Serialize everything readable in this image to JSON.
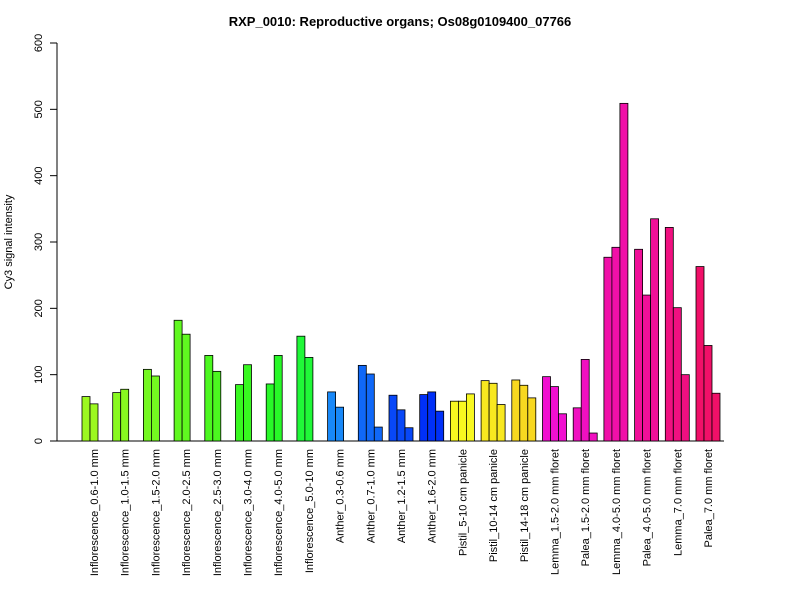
{
  "chart_data": {
    "type": "bar",
    "title": "RXP_0010: Reproductive organs; Os08g0109400_07766",
    "xlabel": "",
    "ylabel": "Cy3 signal intensity",
    "ylim": [
      0,
      600
    ],
    "yticks": [
      0,
      100,
      200,
      300,
      400,
      500,
      600
    ],
    "grid": false,
    "legend": "none",
    "groups": [
      {
        "label": "Inflorescence_0.6-1.0 mm",
        "color": "#9cf820",
        "values": [
          67,
          56
        ]
      },
      {
        "label": "Inflorescence_1.0-1.5 mm",
        "color": "#88f820",
        "values": [
          73,
          78
        ]
      },
      {
        "label": "Inflorescence_1.5-2.0 mm",
        "color": "#74f820",
        "values": [
          108,
          98
        ]
      },
      {
        "label": "Inflorescence_2.0-2.5 mm",
        "color": "#60f820",
        "values": [
          182,
          161
        ]
      },
      {
        "label": "Inflorescence_2.5-3.0 mm",
        "color": "#4cf820",
        "values": [
          129,
          105
        ]
      },
      {
        "label": "Inflorescence_3.0-4.0 mm",
        "color": "#38f820",
        "values": [
          85,
          115
        ]
      },
      {
        "label": "Inflorescence_4.0-5.0 mm",
        "color": "#28f828",
        "values": [
          86,
          129
        ]
      },
      {
        "label": "Inflorescence_5.0-10 mm",
        "color": "#20f838",
        "values": [
          158,
          126
        ]
      },
      {
        "label": "Anther_0.3-0.6 mm",
        "color": "#1888f8",
        "values": [
          74,
          51
        ]
      },
      {
        "label": "Anther_0.7-1.0 mm",
        "color": "#1068f8",
        "values": [
          114,
          101,
          21
        ]
      },
      {
        "label": "Anther_1.2-1.5 mm",
        "color": "#0848f8",
        "values": [
          69,
          47,
          20
        ]
      },
      {
        "label": "Anther_1.6-2.0 mm",
        "color": "#0030f8",
        "values": [
          70,
          74,
          45
        ]
      },
      {
        "label": "Pistil_5-10 cm panicle",
        "color": "#f8f820",
        "values": [
          60,
          60,
          71
        ]
      },
      {
        "label": "Pistil_10-14 cm panicle",
        "color": "#f8e820",
        "values": [
          91,
          87,
          55
        ]
      },
      {
        "label": "Pistil_14-18 cm panicle",
        "color": "#f8d820",
        "values": [
          92,
          84,
          65
        ]
      },
      {
        "label": "Lemma_1.5-2.0 mm floret",
        "color": "#f010d0",
        "values": [
          97,
          82,
          41
        ]
      },
      {
        "label": "Palea_1.5-2.0 mm floret",
        "color": "#f010c0",
        "values": [
          50,
          123,
          12
        ]
      },
      {
        "label": "Lemma_4.0-5.0 mm floret",
        "color": "#f010a8",
        "values": [
          277,
          292,
          509
        ]
      },
      {
        "label": "Palea_4.0-5.0 mm floret",
        "color": "#f01098",
        "values": [
          289,
          220,
          335
        ]
      },
      {
        "label": "Lemma_7.0 mm floret",
        "color": "#f01080",
        "values": [
          322,
          201,
          100
        ]
      },
      {
        "label": "Palea_7.0 mm floret",
        "color": "#f01068",
        "values": [
          263,
          144,
          72
        ]
      }
    ]
  }
}
